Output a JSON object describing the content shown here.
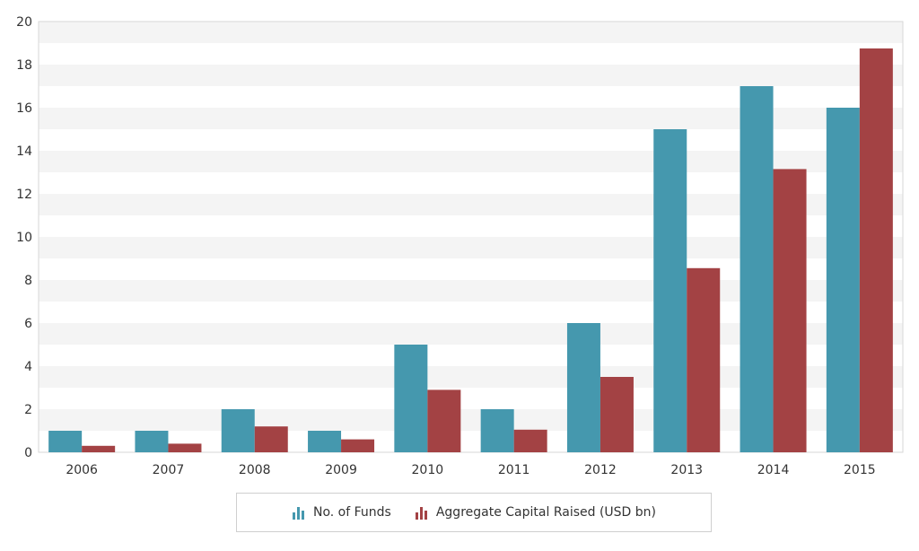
{
  "chart_data": {
    "type": "bar",
    "title": "",
    "xlabel": "",
    "ylabel": "",
    "categories": [
      "2006",
      "2007",
      "2008",
      "2009",
      "2010",
      "2011",
      "2012",
      "2013",
      "2014",
      "2015"
    ],
    "series": [
      {
        "name": "No. of Funds",
        "color": "#4598ae",
        "values": [
          1,
          1,
          2,
          1,
          5,
          2,
          6,
          15,
          17,
          16
        ]
      },
      {
        "name": "Aggregate Capital Raised (USD bn)",
        "color": "#a34244",
        "values": [
          0.3,
          0.4,
          1.2,
          0.6,
          2.9,
          1.05,
          3.5,
          8.55,
          13.15,
          18.75
        ]
      }
    ],
    "ylim": [
      0,
      20
    ],
    "yticks": [
      "0",
      "2",
      "4",
      "6",
      "8",
      "10",
      "12",
      "14",
      "16",
      "18",
      "20"
    ],
    "grid": "alternating horizontal bands",
    "legend": "bottom-center"
  },
  "legend": {
    "items": [
      {
        "label": "No. of Funds",
        "icon": "bar-chart-icon",
        "color": "#4598ae"
      },
      {
        "label": "Aggregate Capital Raised (USD bn)",
        "icon": "bar-chart-icon",
        "color": "#a34244"
      }
    ]
  }
}
